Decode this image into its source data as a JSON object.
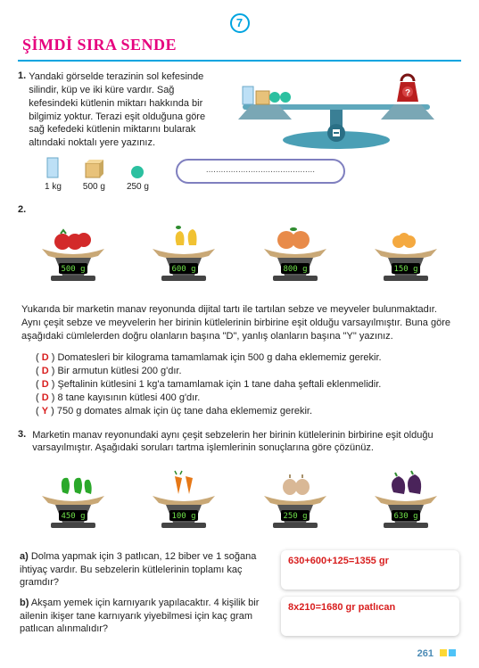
{
  "header": {
    "badge": "7",
    "title": "ŞİMDİ SIRA SENDE"
  },
  "q1": {
    "num": "1.",
    "text": "Yandaki görselde terazinin sol kefesinde silindir, küp ve iki küre vardır. Sağ kefesindeki kütlenin miktarı hakkında bir bilgimiz yoktur. Terazi eşit olduğuna göre sağ kefedeki kütlenin miktarını bularak altındaki noktalı yere yazınız.",
    "weights": [
      {
        "label": "1 kg",
        "color": "#bde0f6"
      },
      {
        "label": "500 g",
        "color": "#e8c27a"
      },
      {
        "label": "250 g",
        "color": "#2bc0a0"
      }
    ],
    "answer_placeholder": "............................................",
    "balance": {
      "qmark": "?",
      "base_color": "#4a9fb5",
      "plate_color": "#7aa7b5",
      "weight_color": "#b91f1f"
    }
  },
  "q2": {
    "num": "2.",
    "scales": [
      {
        "display": "500 g",
        "fruit": "tomato",
        "fruit_color": "#d32a2a",
        "leaf": "#2e8b2e"
      },
      {
        "display": "600 g",
        "fruit": "pear",
        "fruit_color": "#f1c232",
        "leaf": "#2e8b2e"
      },
      {
        "display": "800 g",
        "fruit": "peach",
        "fruit_color": "#e88b4a",
        "leaf": "#2e8b2e"
      },
      {
        "display": "150 g",
        "fruit": "apricot",
        "fruit_color": "#f4a940",
        "leaf": "#2e8b2e"
      }
    ],
    "scale_body": "#555",
    "scale_screen_bg": "#000",
    "scale_text": "#6fe04a",
    "text": "Yukarıda bir marketin manav reyonunda dijital tartı ile tartılan sebze ve meyveler bulunmaktadır. Aynı çeşit sebze ve meyvelerin her birinin kütlelerinin birbirine eşit olduğu varsayılmıştır. Buna göre aşağıdaki cümlelerden doğru olanların başına \"D\", yanlış olanların başına \"Y\" yazınız.",
    "items": [
      {
        "mark": "D",
        "text": "Domatesleri bir kilograma tamamlamak için 500 g daha eklememiz gerekir."
      },
      {
        "mark": "D",
        "text": "Bir armutun kütlesi 200 g'dır."
      },
      {
        "mark": "D",
        "text": "Şeftalinin kütlesini 1 kg'a tamamlamak için 1 tane daha şeftali eklenmelidir."
      },
      {
        "mark": "D",
        "text": "8 tane kayısının kütlesi 400 g'dır."
      },
      {
        "mark": "Y",
        "text": "750 g domates almak için üç tane daha eklememiz gerekir."
      }
    ]
  },
  "q3": {
    "num": "3.",
    "text": "Marketin manav reyonundaki aynı çeşit sebzelerin her birinin kütlelerinin birbirine eşit olduğu varsayılmıştır. Aşağıdaki soruları tartma işlemlerinin sonuçlarına göre çözünüz.",
    "scales": [
      {
        "display": "450 g",
        "veg": "pepper",
        "veg_color": "#2aa82a"
      },
      {
        "display": "100 g",
        "veg": "carrot",
        "veg_color": "#e67817"
      },
      {
        "display": "250 g",
        "veg": "onion",
        "veg_color": "#d9b896"
      },
      {
        "display": "630 g",
        "veg": "eggplant",
        "veg_color": "#4a235a"
      }
    ],
    "subs": [
      {
        "label": "a)",
        "text": "Dolma yapmak için 3 patlıcan, 12 biber ve 1 soğana ihtiyaç vardır. Bu sebzelerin kütlelerinin toplamı kaç gramdır?",
        "answer": "630+600+125=1355 gr"
      },
      {
        "label": "b)",
        "text": "Akşam yemek için karnıyarık yapılacaktır. 4 kişilik bir ailenin ikişer tane karnıyarık yiyebilmesi için kaç gram patlıcan alınmalıdır?",
        "answer": "8x210=1680 gr patlıcan"
      }
    ]
  },
  "pagenum": "261"
}
